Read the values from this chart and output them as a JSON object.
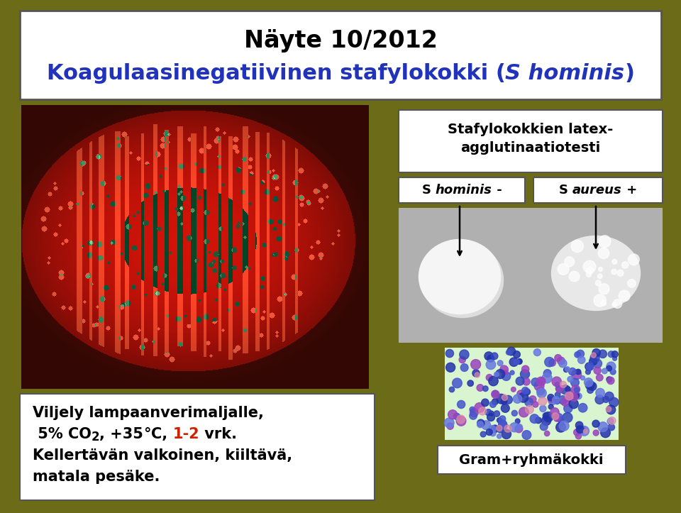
{
  "bg_color": "#6b6b18",
  "title_box_color": "#ffffff",
  "title_line1": "Näyte 10/2012",
  "title_line1_color": "#000000",
  "title_line2_part1": "Koagulaasinegatiivinen stafylokokki (",
  "title_line2_italic": "S hominis",
  "title_line2_part2": ")",
  "title_line2_color": "#2233bb",
  "latex_title_line1": "Stafylokokkien latex-",
  "latex_title_line2": "agglutinaatiotesti",
  "s_hominis_label_part1": "S ",
  "s_hominis_label_italic": "hominis",
  "s_hominis_label_part2": " -",
  "s_aureus_label_part1": "S ",
  "s_aureus_label_italic": "aureus",
  "s_aureus_label_part2": " +",
  "bottom_left_line1": "Viljely lampaanverimaljalle,",
  "bottom_left_line2a": " 5% CO",
  "bottom_left_line2_sub": "2",
  "bottom_left_line2b": ", +35",
  "bottom_left_line2_deg": "°",
  "bottom_left_line2c": "C, ",
  "bottom_left_line2_red": "1-2",
  "bottom_left_line2d": " vrk.",
  "bottom_left_line3": "Kellertävän valkoinen, kiiltävä,",
  "bottom_left_line4": "matala pesäke.",
  "gram_label": "Gram+ryhmäkokki",
  "text_color": "#000000",
  "red_color": "#cc2200",
  "box_edge_color": "#555555",
  "fig_width": 9.6,
  "fig_height": 7.23,
  "dpi": 100
}
